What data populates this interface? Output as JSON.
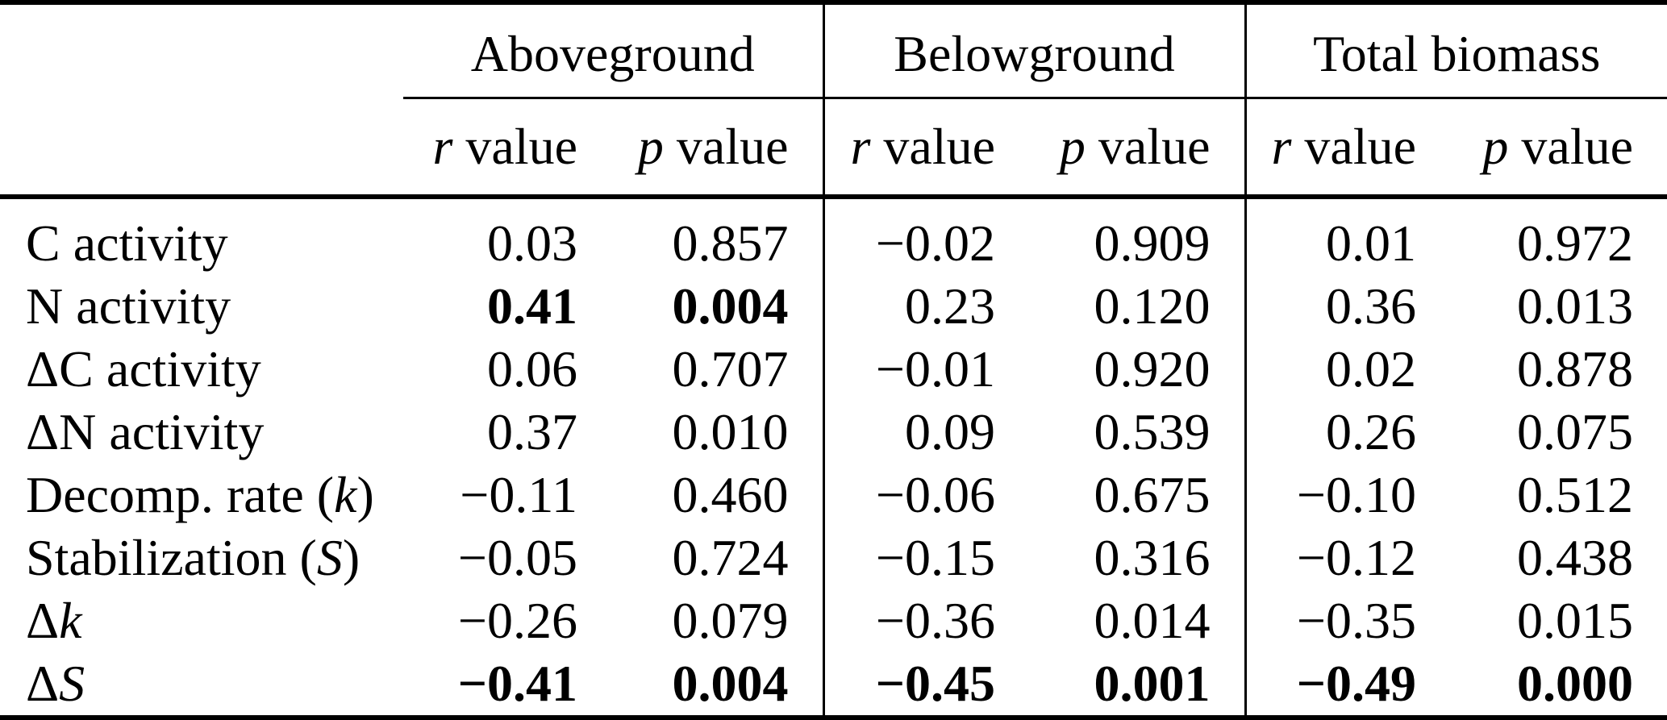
{
  "table": {
    "colors": {
      "background": "#ffffff",
      "text": "#000000",
      "rules": "#000000"
    },
    "groups": [
      {
        "label": "Aboveground"
      },
      {
        "label": "Belowground"
      },
      {
        "label": "Total biomass"
      }
    ],
    "col_headers": {
      "r_italic": "r",
      "r_rest": " value",
      "p_italic": "p",
      "p_rest": " value"
    },
    "rows": [
      {
        "label": [
          {
            "t": "C activity",
            "i": false
          }
        ],
        "cells": [
          {
            "v": "0.03"
          },
          {
            "v": "0.857"
          },
          {
            "v": "−0.02"
          },
          {
            "v": "0.909"
          },
          {
            "v": "0.01"
          },
          {
            "v": "0.972"
          }
        ]
      },
      {
        "label": [
          {
            "t": "N activity",
            "i": false
          }
        ],
        "cells": [
          {
            "v": "0.41",
            "b": true
          },
          {
            "v": "0.004",
            "b": true
          },
          {
            "v": "0.23"
          },
          {
            "v": "0.120"
          },
          {
            "v": "0.36"
          },
          {
            "v": "0.013"
          }
        ]
      },
      {
        "label": [
          {
            "t": "ΔC activity",
            "i": false
          }
        ],
        "cells": [
          {
            "v": "0.06"
          },
          {
            "v": "0.707"
          },
          {
            "v": "−0.01"
          },
          {
            "v": "0.920"
          },
          {
            "v": "0.02"
          },
          {
            "v": "0.878"
          }
        ]
      },
      {
        "label": [
          {
            "t": "ΔN activity",
            "i": false
          }
        ],
        "cells": [
          {
            "v": "0.37"
          },
          {
            "v": "0.010"
          },
          {
            "v": "0.09"
          },
          {
            "v": "0.539"
          },
          {
            "v": "0.26"
          },
          {
            "v": "0.075"
          }
        ]
      },
      {
        "label": [
          {
            "t": "Decomp. rate (",
            "i": false
          },
          {
            "t": "k",
            "i": true
          },
          {
            "t": ")",
            "i": false
          }
        ],
        "cells": [
          {
            "v": "−0.11"
          },
          {
            "v": "0.460"
          },
          {
            "v": "−0.06"
          },
          {
            "v": "0.675"
          },
          {
            "v": "−0.10"
          },
          {
            "v": "0.512"
          }
        ]
      },
      {
        "label": [
          {
            "t": "Stabilization (",
            "i": false
          },
          {
            "t": "S",
            "i": true
          },
          {
            "t": ")",
            "i": false
          }
        ],
        "cells": [
          {
            "v": "−0.05"
          },
          {
            "v": "0.724"
          },
          {
            "v": "−0.15"
          },
          {
            "v": "0.316"
          },
          {
            "v": "−0.12"
          },
          {
            "v": "0.438"
          }
        ]
      },
      {
        "label": [
          {
            "t": "Δ",
            "i": false
          },
          {
            "t": "k",
            "i": true
          }
        ],
        "cells": [
          {
            "v": "−0.26"
          },
          {
            "v": "0.079"
          },
          {
            "v": "−0.36"
          },
          {
            "v": "0.014"
          },
          {
            "v": "−0.35"
          },
          {
            "v": "0.015"
          }
        ]
      },
      {
        "label": [
          {
            "t": "Δ",
            "i": false
          },
          {
            "t": "S",
            "i": true
          }
        ],
        "cells": [
          {
            "v": "−0.41",
            "b": true
          },
          {
            "v": "0.004",
            "b": true
          },
          {
            "v": "−0.45",
            "b": true
          },
          {
            "v": "0.001",
            "b": true
          },
          {
            "v": "−0.49",
            "b": true
          },
          {
            "v": "0.000",
            "b": true
          }
        ]
      }
    ]
  },
  "chart_data": {
    "type": "table",
    "title": "",
    "column_groups": [
      "Aboveground",
      "Belowground",
      "Total biomass"
    ],
    "columns_per_group": [
      "r value",
      "p value"
    ],
    "row_labels": [
      "C activity",
      "N activity",
      "ΔC activity",
      "ΔN activity",
      "Decomp. rate (k)",
      "Stabilization (S)",
      "Δk",
      "ΔS"
    ],
    "series": [
      {
        "name": "Aboveground r",
        "values": [
          0.03,
          0.41,
          0.06,
          0.37,
          -0.11,
          -0.05,
          -0.26,
          -0.41
        ]
      },
      {
        "name": "Aboveground p",
        "values": [
          0.857,
          0.004,
          0.707,
          0.01,
          0.46,
          0.724,
          0.079,
          0.004
        ]
      },
      {
        "name": "Belowground r",
        "values": [
          -0.02,
          0.23,
          -0.01,
          0.09,
          -0.06,
          -0.15,
          -0.36,
          -0.45
        ]
      },
      {
        "name": "Belowground p",
        "values": [
          0.909,
          0.12,
          0.92,
          0.539,
          0.675,
          0.316,
          0.014,
          0.001
        ]
      },
      {
        "name": "Total biomass r",
        "values": [
          0.01,
          0.36,
          0.02,
          0.26,
          -0.1,
          -0.12,
          -0.35,
          -0.49
        ]
      },
      {
        "name": "Total biomass p",
        "values": [
          0.972,
          0.013,
          0.878,
          0.075,
          0.512,
          0.438,
          0.015,
          0.0
        ]
      }
    ],
    "bold_cells": [
      [
        "N activity",
        "Aboveground r"
      ],
      [
        "N activity",
        "Aboveground p"
      ],
      [
        "ΔS",
        "Aboveground r"
      ],
      [
        "ΔS",
        "Aboveground p"
      ],
      [
        "ΔS",
        "Belowground r"
      ],
      [
        "ΔS",
        "Belowground p"
      ],
      [
        "ΔS",
        "Total biomass r"
      ],
      [
        "ΔS",
        "Total biomass p"
      ]
    ]
  }
}
